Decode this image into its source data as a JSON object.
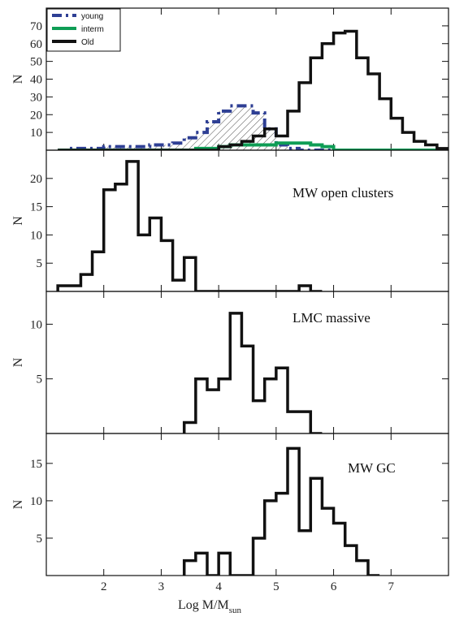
{
  "chart_data": [
    {
      "type": "histogram",
      "panel": "top",
      "ylabel": "N",
      "xlim": [
        1.0,
        8.0
      ],
      "ylim": [
        0,
        80
      ],
      "yticks": [
        10,
        20,
        30,
        40,
        50,
        60,
        70
      ],
      "bin_width": 0.2,
      "legend": {
        "placement": "top-left",
        "entries": [
          "young",
          "interm",
          "Old"
        ]
      },
      "series": [
        {
          "name": "young",
          "color": "#2e3f94",
          "style": "dash-dot, hatched fill",
          "x_start": 1.2,
          "values": [
            0,
            1,
            1,
            1,
            2,
            2,
            2,
            2,
            3,
            3,
            4,
            7,
            10,
            16,
            22,
            25,
            25,
            21,
            12,
            3,
            1,
            0,
            0,
            0,
            0,
            0,
            0,
            0,
            0,
            0,
            0,
            0,
            0,
            0,
            0
          ]
        },
        {
          "name": "interm",
          "color": "#0e9d55",
          "style": "solid",
          "x_start": 1.2,
          "values": [
            0,
            0,
            0,
            0,
            0,
            0,
            0,
            0,
            0,
            0,
            0,
            0,
            1,
            1,
            2,
            3,
            3,
            3,
            3,
            4,
            4,
            4,
            3,
            2,
            0,
            0,
            0,
            0,
            0,
            0,
            0,
            0,
            0,
            0,
            0
          ]
        },
        {
          "name": "Old",
          "color": "#111111",
          "style": "solid",
          "x_start": 1.2,
          "values": [
            0,
            0,
            0,
            0,
            0,
            0,
            0,
            0,
            0,
            0,
            0,
            0,
            0,
            0,
            2,
            3,
            5,
            8,
            12,
            8,
            22,
            38,
            52,
            60,
            66,
            67,
            52,
            43,
            29,
            18,
            10,
            5,
            3,
            1,
            0
          ]
        }
      ]
    },
    {
      "type": "histogram",
      "panel": "open-clusters",
      "annotation": "MW open clusters",
      "ylabel": "N",
      "xlim": [
        1.0,
        8.0
      ],
      "ylim": [
        0,
        25
      ],
      "yticks": [
        5,
        10,
        15,
        20
      ],
      "bin_width": 0.2,
      "x_start": 1.2,
      "values": [
        1,
        1,
        3,
        7,
        18,
        19,
        23,
        10,
        13,
        9,
        2,
        6,
        0,
        0,
        0,
        0,
        0,
        0,
        0,
        0,
        0,
        1,
        0
      ]
    },
    {
      "type": "histogram",
      "panel": "lmc-massive",
      "annotation": "LMC massive",
      "ylabel": "N",
      "xlim": [
        1.0,
        8.0
      ],
      "ylim": [
        0,
        13
      ],
      "yticks": [
        5,
        10
      ],
      "bin_width": 0.2,
      "x_start": 3.4,
      "values": [
        1,
        5,
        4,
        5,
        11,
        8,
        3,
        5,
        6,
        2,
        2,
        0
      ]
    },
    {
      "type": "histogram",
      "panel": "mw-gc",
      "annotation": "MW GC",
      "ylabel": "N",
      "xlabel": "Log M/M",
      "xlabel_sub": "sun",
      "xlim": [
        1.0,
        8.0
      ],
      "ylim": [
        0,
        19
      ],
      "xticks": [
        2,
        3,
        4,
        5,
        6,
        7
      ],
      "yticks": [
        5,
        10,
        15
      ],
      "bin_width": 0.2,
      "x_start": 3.4,
      "values": [
        2,
        3,
        0,
        3,
        0,
        0,
        5,
        10,
        11,
        17,
        6,
        13,
        9,
        7,
        4,
        2,
        0
      ]
    }
  ]
}
